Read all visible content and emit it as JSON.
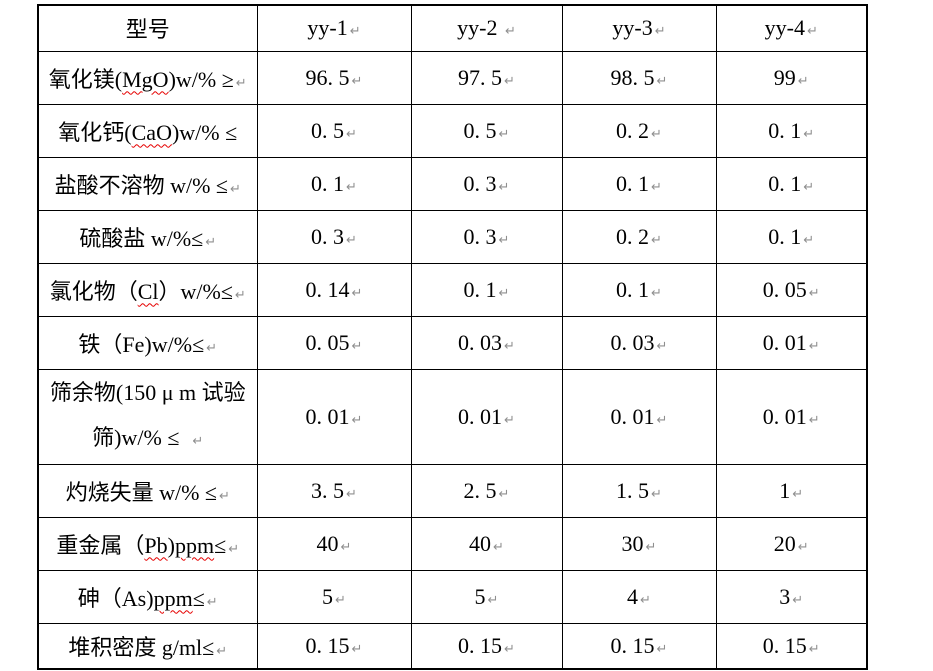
{
  "page": {
    "background": "#ffffff"
  },
  "colors": {
    "border": "#000000",
    "text": "#000000",
    "paragraph_mark": "#8f8f8f",
    "spellcheck_underline": "#e60000"
  },
  "icons": {
    "paragraph_mark_glyph": "↵"
  },
  "table": {
    "header": {
      "row_label": "型号",
      "models": [
        "yy-1",
        "yy-2 ",
        "yy-3",
        "yy-4"
      ]
    },
    "rows": [
      {
        "label_lines": [
          [
            {
              "t": "氧化镁(",
              "ms": false
            },
            {
              "t": "MgO",
              "ms": true
            },
            {
              "t": ")w/% ≥",
              "ms": false
            }
          ]
        ],
        "label_mark": true,
        "values": [
          "96. 5",
          "97. 5",
          "98. 5",
          "99"
        ]
      },
      {
        "label_lines": [
          [
            {
              "t": "氧化钙(",
              "ms": false
            },
            {
              "t": "CaO",
              "ms": true
            },
            {
              "t": ")w/% ≤",
              "ms": false
            }
          ]
        ],
        "label_mark": false,
        "values": [
          "0. 5",
          "0. 5",
          "0. 2",
          "0. 1"
        ]
      },
      {
        "label_lines": [
          [
            {
              "t": "盐酸不溶物 w/% ≤",
              "ms": false
            }
          ]
        ],
        "label_mark": true,
        "values": [
          "0. 1",
          "0. 3",
          "0. 1",
          "0. 1"
        ]
      },
      {
        "label_lines": [
          [
            {
              "t": "硫酸盐 w/%≤",
              "ms": false
            }
          ]
        ],
        "label_mark": true,
        "values": [
          "0. 3",
          "0. 3",
          "0. 2",
          "0. 1"
        ]
      },
      {
        "label_lines": [
          [
            {
              "t": "氯化物（",
              "ms": false
            },
            {
              "t": "Cl",
              "ms": true
            },
            {
              "t": "）w/%≤",
              "ms": false
            }
          ]
        ],
        "label_mark": true,
        "values": [
          "0. 14",
          "0. 1",
          "0. 1",
          "0. 05"
        ]
      },
      {
        "label_lines": [
          [
            {
              "t": "铁（Fe)w/%≤",
              "ms": false
            }
          ]
        ],
        "label_mark": true,
        "values": [
          "0. 05",
          "0. 03",
          "0. 03",
          "0. 01"
        ]
      },
      {
        "label_lines": [
          [
            {
              "t": "筛余物(150 μ m 试验",
              "ms": false
            }
          ],
          [
            {
              "t": "筛)w/% ≤  ",
              "ms": false
            }
          ]
        ],
        "label_mark": true,
        "values": [
          "0. 01",
          "0. 01",
          "0. 01",
          "0. 01"
        ]
      },
      {
        "label_lines": [
          [
            {
              "t": "灼烧失量 w/% ≤",
              "ms": false
            }
          ]
        ],
        "label_mark": true,
        "values": [
          "3. 5",
          "2. 5",
          "1. 5",
          "1"
        ]
      },
      {
        "label_lines": [
          [
            {
              "t": "重金属（",
              "ms": false
            },
            {
              "t": "Pb",
              "ms": true
            },
            {
              "t": ")",
              "ms": false
            },
            {
              "t": "ppm",
              "ms": true
            },
            {
              "t": "≤",
              "ms": false
            }
          ]
        ],
        "label_mark": true,
        "values": [
          "40",
          "40",
          "30",
          "20"
        ]
      },
      {
        "label_lines": [
          [
            {
              "t": "砷（As)",
              "ms": false
            },
            {
              "t": "ppm",
              "ms": true
            },
            {
              "t": "≤",
              "ms": false
            }
          ]
        ],
        "label_mark": true,
        "values": [
          "5",
          "5",
          "4",
          "3"
        ]
      },
      {
        "label_lines": [
          [
            {
              "t": "堆积密度 g/ml≤",
              "ms": false
            }
          ]
        ],
        "label_mark": true,
        "values": [
          "0. 15",
          "0. 15",
          "0. 15",
          "0. 15"
        ]
      }
    ]
  }
}
